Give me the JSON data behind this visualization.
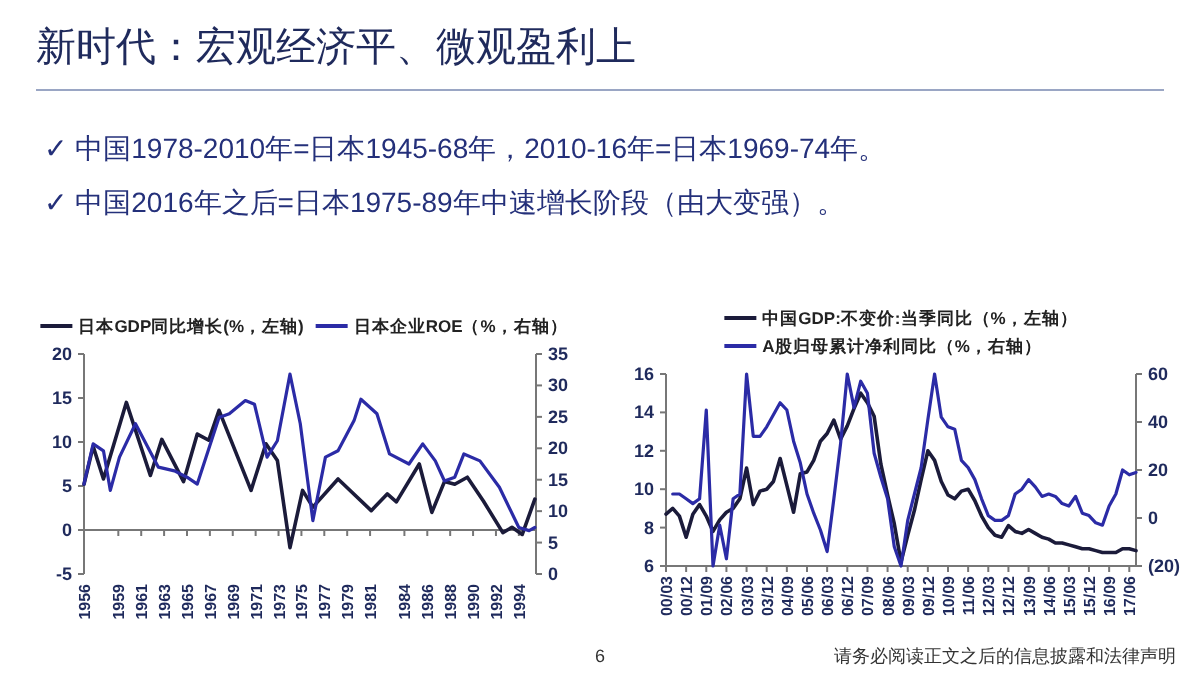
{
  "chart_data": [
    {
      "type": "other",
      "title": "新时代：宏观经济平、微观盈利上",
      "annotations": [
        "✓ 中国1978-2010年=日本1945-68年，2010-16年=日本1969-74年。",
        "✓ 中国2016年之后=日本1975-89年中速增长阶段（由大变强）。",
        "6",
        "请务必阅读正文之后的信息披露和法律声明"
      ]
    },
    {
      "type": "line",
      "legend": "top",
      "xlim": [
        1956,
        1995.5
      ],
      "xticks": [
        1956,
        1959,
        1961,
        1963,
        1965,
        1967,
        1969,
        1971,
        1973,
        1975,
        1977,
        1979,
        1981,
        1984,
        1986,
        1988,
        1990,
        1992,
        1994
      ],
      "ylim": [
        -5,
        20
      ],
      "yticks": [
        -5,
        0,
        5,
        10,
        15,
        20
      ],
      "y2lim": [
        0,
        35
      ],
      "y2ticks": [
        0,
        5,
        10,
        15,
        20,
        25,
        30,
        35
      ],
      "series": [
        {
          "name": "日本GDP同比增长(%，左轴)",
          "color": "#1b1b3a",
          "x": [
            1956.0,
            1956.8,
            1957.7,
            1959.7,
            1961.8,
            1962.8,
            1964.7,
            1965.9,
            1966.9,
            1967.8,
            1970.6,
            1971.9,
            1972.9,
            1974.0,
            1975.1,
            1976.0,
            1978.2,
            1981.1,
            1982.5,
            1983.3,
            1985.3,
            1986.4,
            1987.5,
            1988.4,
            1989.5,
            1990.9,
            1992.6,
            1993.4,
            1994.3,
            1995.4
          ],
          "values": [
            5.2,
            9.5,
            5.8,
            14.5,
            6.2,
            10.3,
            5.5,
            10.9,
            10.2,
            13.6,
            4.5,
            9.8,
            7.9,
            -2.0,
            4.5,
            2.6,
            5.8,
            2.2,
            4.1,
            3.2,
            7.5,
            2.0,
            5.5,
            5.2,
            6.0,
            3.3,
            -0.3,
            0.3,
            -0.5,
            3.5
          ]
        },
        {
          "name": "日本企业ROE（%，右轴）",
          "color": "#2b2ba6",
          "axis": "y2",
          "x": [
            1956.0,
            1956.8,
            1957.7,
            1958.3,
            1959.1,
            1960.5,
            1962.5,
            1963.9,
            1965.0,
            1965.9,
            1967.8,
            1968.7,
            1970.1,
            1970.9,
            1972.0,
            1972.9,
            1974.0,
            1974.9,
            1976.0,
            1977.1,
            1978.2,
            1979.6,
            1980.2,
            1981.6,
            1982.7,
            1984.4,
            1985.6,
            1986.7,
            1987.5,
            1988.4,
            1989.2,
            1990.6,
            1992.3,
            1994.0,
            1994.9,
            1995.4
          ],
          "values": [
            14.3,
            20.7,
            19.6,
            13.3,
            18.6,
            23.9,
            17.0,
            16.4,
            15.4,
            14.3,
            24.9,
            25.5,
            27.6,
            27.0,
            18.6,
            21.2,
            31.8,
            23.9,
            8.5,
            18.6,
            19.6,
            24.4,
            27.8,
            25.5,
            19.1,
            17.5,
            20.7,
            18.0,
            14.8,
            15.4,
            19.1,
            18.0,
            13.8,
            7.4,
            6.9,
            7.4
          ]
        }
      ]
    },
    {
      "type": "line",
      "legend": "top",
      "categories": [
        "00/03",
        null,
        null,
        "00/12",
        null,
        null,
        "01/09",
        null,
        null,
        "02/06",
        null,
        null,
        "03/03",
        null,
        null,
        "03/12",
        null,
        null,
        "04/09",
        null,
        null,
        "05/06",
        null,
        null,
        "06/03",
        null,
        null,
        "06/12",
        null,
        null,
        "07/09",
        null,
        null,
        "08/06",
        null,
        null,
        "09/03",
        null,
        null,
        "09/12",
        null,
        null,
        "10/09",
        null,
        null,
        "11/06",
        null,
        null,
        "12/03",
        null,
        null,
        "12/12",
        null,
        null,
        "13/09",
        null,
        null,
        "14/06",
        null,
        null,
        "15/03",
        null,
        null,
        "15/12",
        null,
        null,
        "16/09",
        null,
        null,
        "17/06",
        null
      ],
      "ylim": [
        6,
        16
      ],
      "yticks": [
        6,
        8,
        10,
        12,
        14,
        16
      ],
      "y2lim": [
        -20,
        60
      ],
      "y2ticks": [
        {
          "value": -20,
          "label": "(20)"
        },
        0,
        20,
        40,
        60
      ],
      "series": [
        {
          "name": "中国GDP:不变价:当季同比（%，左轴）",
          "color": "#1b1b3a",
          "values": [
            8.7,
            9.0,
            8.6,
            7.5,
            8.7,
            9.2,
            8.6,
            7.8,
            8.4,
            8.8,
            9.0,
            9.5,
            11.1,
            9.2,
            9.9,
            10.0,
            10.4,
            11.6,
            10.2,
            8.8,
            10.8,
            10.9,
            11.5,
            12.5,
            12.9,
            13.6,
            12.6,
            13.3,
            14.2,
            15.0,
            14.5,
            13.8,
            11.3,
            9.7,
            8.2,
            6.2,
            7.6,
            8.9,
            10.5,
            12.0,
            11.5,
            10.4,
            9.7,
            9.5,
            9.9,
            10.0,
            9.4,
            8.6,
            8.0,
            7.6,
            7.5,
            8.1,
            7.8,
            7.7,
            7.9,
            7.7,
            7.5,
            7.4,
            7.2,
            7.2,
            7.1,
            7.0,
            6.9,
            6.9,
            6.8,
            6.7,
            6.7,
            6.7,
            6.9,
            6.9,
            6.8
          ]
        },
        {
          "name": "A股归母累计净利同比（%，右轴）",
          "color": "#2b2ba6",
          "axis": "y2",
          "values": [
            null,
            10,
            10,
            8,
            6,
            8,
            45,
            -20,
            -3,
            -17,
            8,
            10,
            60,
            34,
            34,
            38,
            43,
            48,
            45,
            32,
            23,
            10,
            2,
            -5,
            -14,
            8,
            31,
            60,
            46,
            57,
            52,
            27,
            17,
            8,
            -12,
            -20,
            -1,
            10,
            21,
            41,
            60,
            42,
            38,
            37,
            24,
            21,
            16,
            8,
            1,
            -1,
            -1,
            1,
            10,
            12,
            16,
            13,
            9,
            10,
            9,
            6,
            5,
            9,
            2,
            1,
            -2,
            -3,
            5,
            10,
            20,
            18,
            19
          ]
        }
      ]
    }
  ]
}
